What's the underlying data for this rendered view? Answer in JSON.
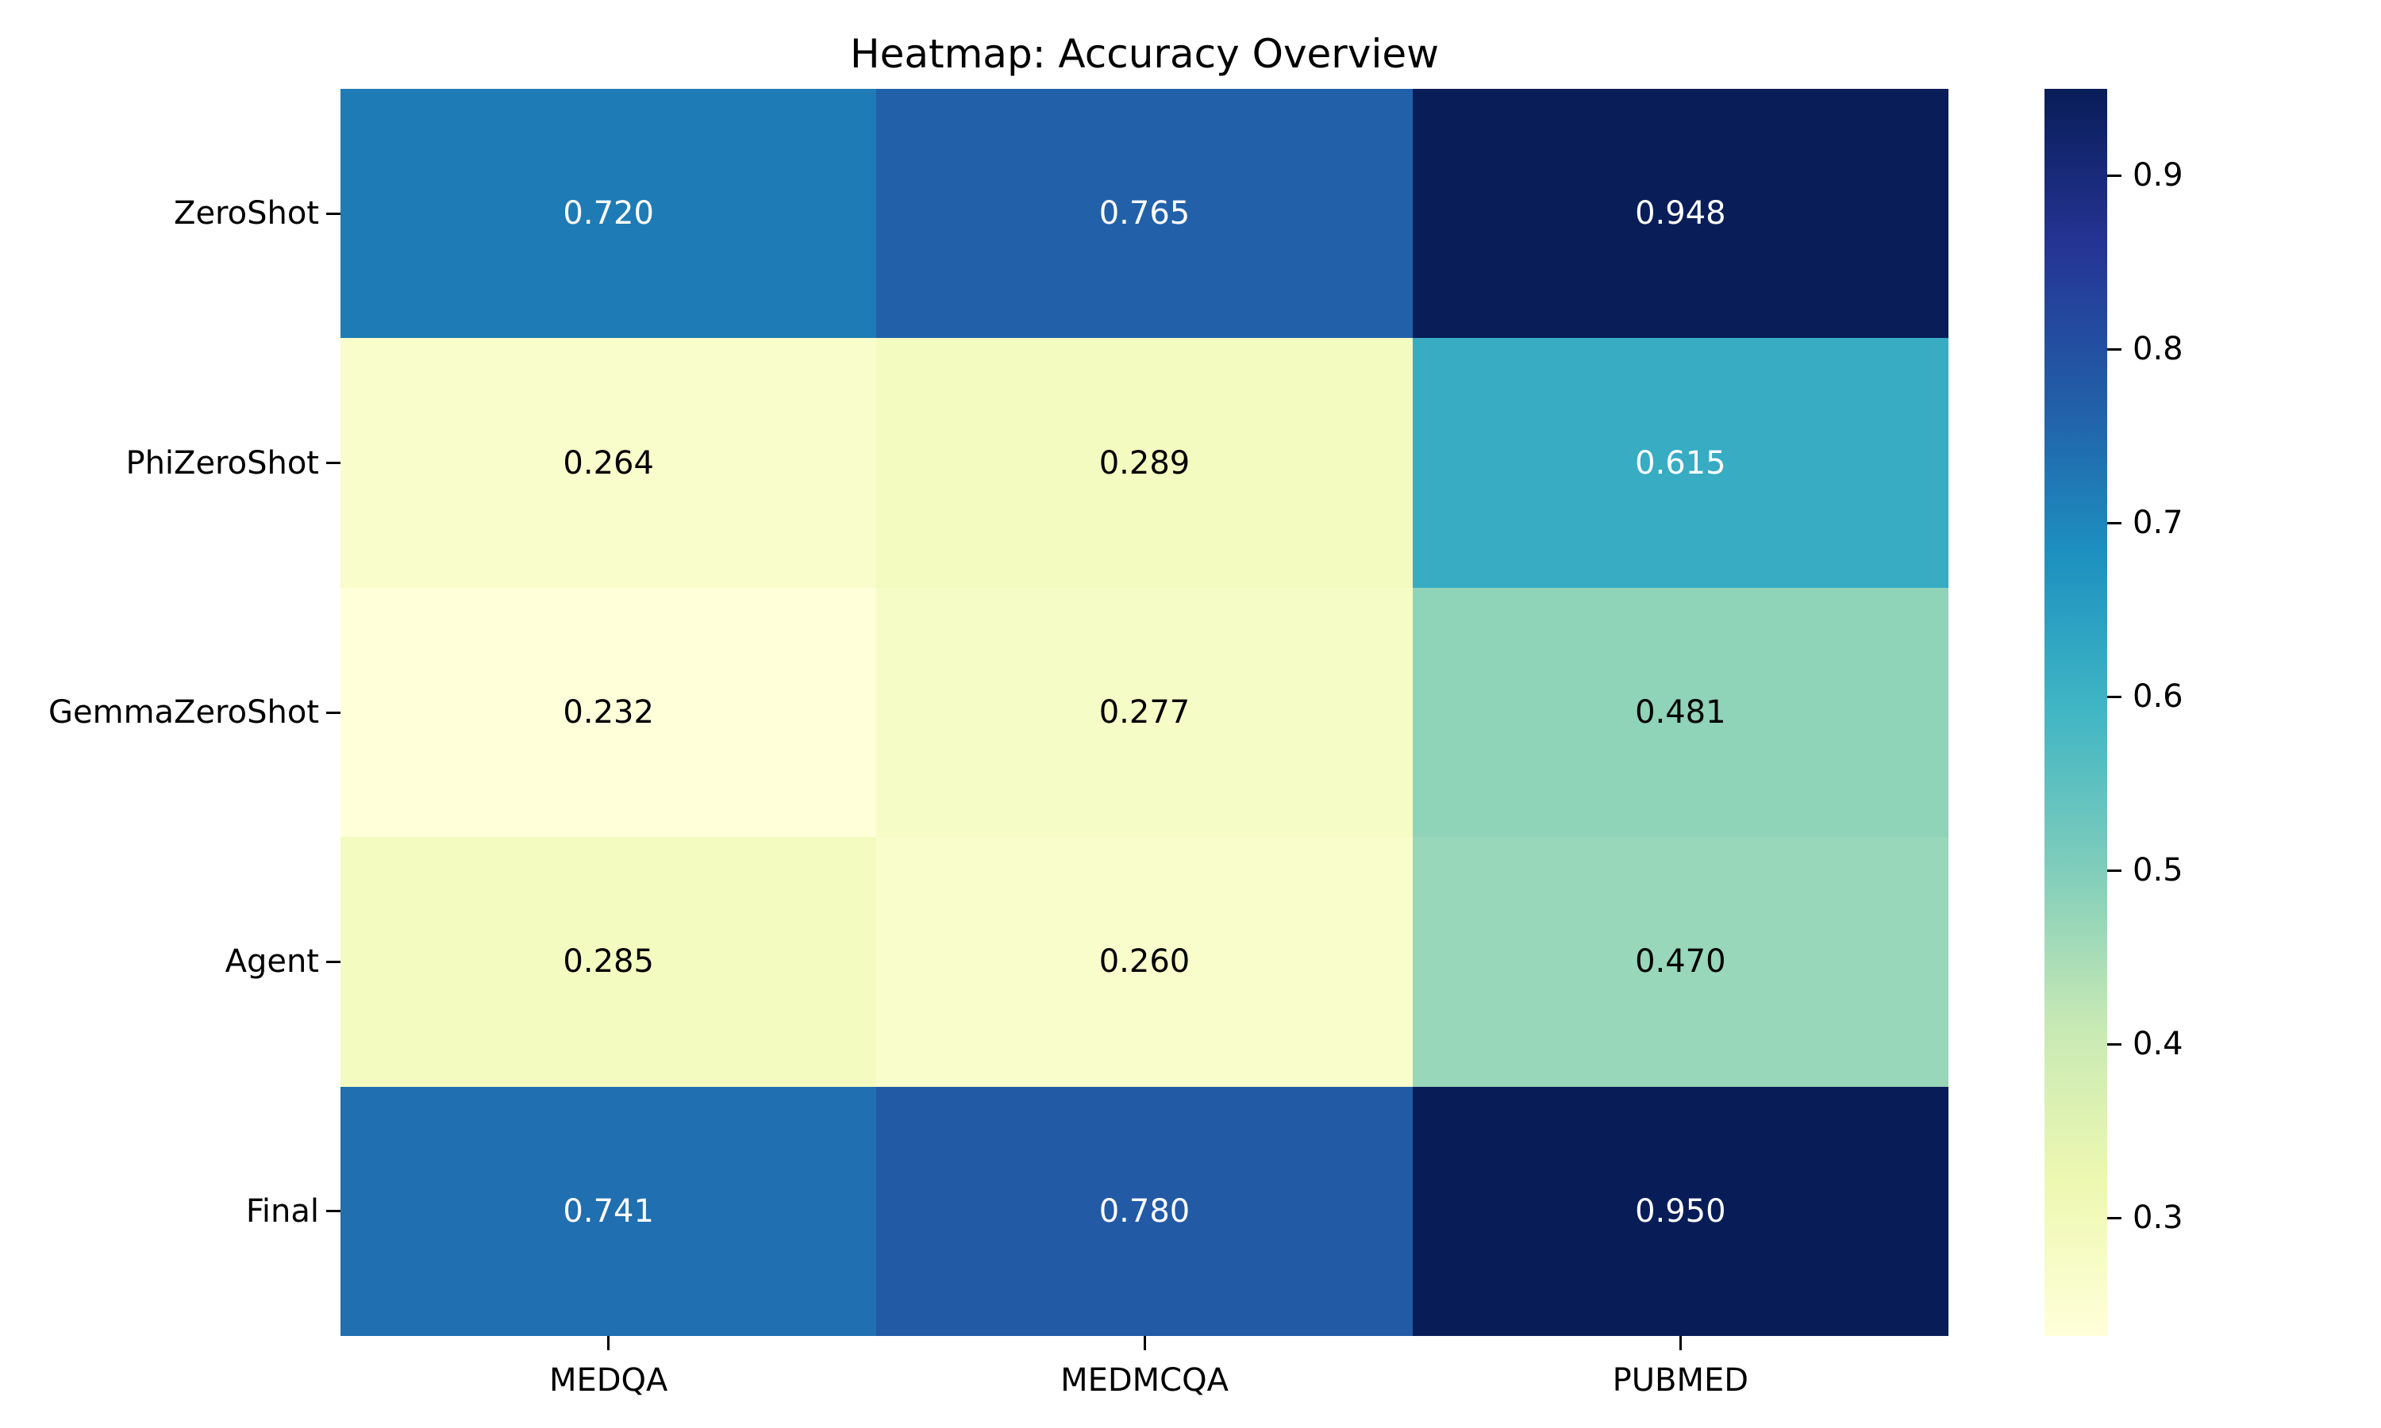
{
  "chart_data": {
    "type": "heatmap",
    "title": "Heatmap: Accuracy Overview",
    "rows": [
      "ZeroShot",
      "PhiZeroShot",
      "GemmaZeroShot",
      "Agent",
      "Final"
    ],
    "columns": [
      "MEDQA",
      "MEDMCQA",
      "PUBMED"
    ],
    "values": [
      [
        0.72,
        0.765,
        0.948
      ],
      [
        0.264,
        0.289,
        0.615
      ],
      [
        0.232,
        0.277,
        0.481
      ],
      [
        0.285,
        0.26,
        0.47
      ],
      [
        0.741,
        0.78,
        0.95
      ]
    ],
    "annotations": [
      [
        "0.720",
        "0.765",
        "0.948"
      ],
      [
        "0.264",
        "0.289",
        "0.615"
      ],
      [
        "0.232",
        "0.277",
        "0.481"
      ],
      [
        "0.285",
        "0.260",
        "0.470"
      ],
      [
        "0.741",
        "0.780",
        "0.950"
      ]
    ],
    "cell_colors": [
      [
        "#1f7bb5",
        "#2261aa",
        "#091e59"
      ],
      [
        "#f9fccb",
        "#f4fbc0",
        "#37acc3"
      ],
      [
        "#ffffd9",
        "#f6fcc5",
        "#8fd3b9"
      ],
      [
        "#f4fbc1",
        "#f9fdcc",
        "#98d7b9"
      ],
      [
        "#206fb0",
        "#225aa6",
        "#081d58"
      ]
    ],
    "text_colors": [
      [
        "#ffffff",
        "#ffffff",
        "#ffffff"
      ],
      [
        "#000000",
        "#000000",
        "#ffffff"
      ],
      [
        "#000000",
        "#000000",
        "#000000"
      ],
      [
        "#000000",
        "#000000",
        "#000000"
      ],
      [
        "#ffffff",
        "#ffffff",
        "#ffffff"
      ]
    ],
    "grid": false,
    "background": "#ffffff",
    "colorbar": {
      "position": "right",
      "colormap": "YlGnBu",
      "vmin": 0.232,
      "vmax": 0.95,
      "ticks": [
        0.3,
        0.4,
        0.5,
        0.6,
        0.7,
        0.8,
        0.9
      ],
      "tick_labels": [
        "0.3",
        "0.4",
        "0.5",
        "0.6",
        "0.7",
        "0.8",
        "0.9"
      ],
      "gradient_stops_bottom_to_top": [
        "#ffffd9",
        "#edf8b1",
        "#c7e9b4",
        "#7fcdbb",
        "#41b6c4",
        "#1d91c0",
        "#225ea8",
        "#253494",
        "#081d58"
      ]
    }
  }
}
